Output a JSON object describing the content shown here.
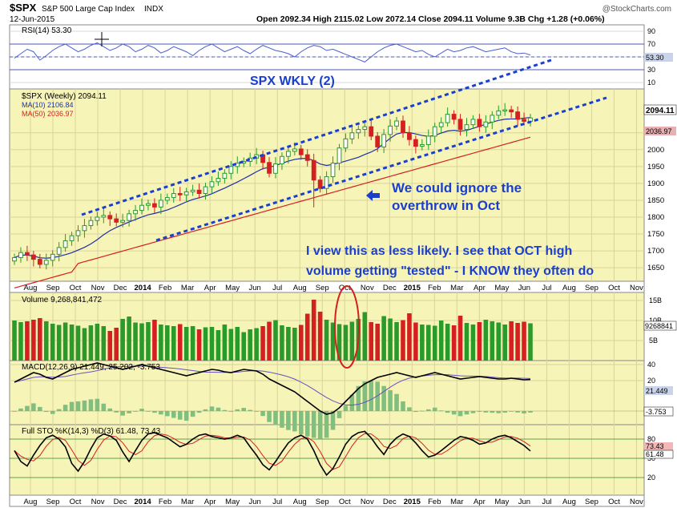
{
  "header": {
    "symbol": "$SPX",
    "name": "S&P 500 Large Cap Index",
    "exchange": "INDX",
    "date": "12-Jun-2015",
    "watermark": "@StockCharts.com",
    "ohlc_line": "Open 2092.34  High 2115.02  Low 2072.14  Close 2094.11  Volume 9.3B  Chg +1.28 (+0.06%)"
  },
  "colors": {
    "panel_bg": "#f7f4b8",
    "rsi_bg": "#ffffff",
    "up": "#2a9a2a",
    "down": "#d42020",
    "ma10": "#1f2fa8",
    "ma50": "#d42020",
    "annotation": "#1a3fd0",
    "channel": "#1a3fd0"
  },
  "chart_data": [
    {
      "type": "line",
      "panel": "rsi",
      "title": "RSI(14) 53.30",
      "ylim": [
        0,
        100
      ],
      "y_ticks": [
        90,
        70,
        50,
        30,
        10
      ],
      "reference_lines": [
        70,
        30
      ],
      "last_value_label": "53.30",
      "values": [
        48,
        55,
        62,
        58,
        45,
        52,
        60,
        66,
        70,
        64,
        58,
        62,
        68,
        72,
        66,
        60,
        64,
        70,
        66,
        58,
        62,
        68,
        64,
        56,
        60,
        66,
        62,
        58,
        52,
        60,
        66,
        70,
        64,
        58,
        62,
        66,
        60,
        55,
        62,
        68,
        64,
        60,
        58,
        55,
        50,
        58,
        64,
        68,
        66,
        60,
        62,
        58,
        54,
        50,
        46,
        42,
        50,
        58,
        64,
        68,
        70,
        66,
        62,
        58,
        60,
        54,
        50,
        56,
        62,
        58,
        60,
        64,
        66,
        62,
        58,
        60,
        62,
        64,
        58,
        55,
        56,
        53
      ]
    },
    {
      "type": "candlestick",
      "panel": "price",
      "title": "SPX WKLY (2)",
      "legend": [
        "$SPX (Weekly) 2094.11",
        "MA(10) 2106.84",
        "MA(50) 2036.97"
      ],
      "ylim": [
        1610,
        2180
      ],
      "y_ticks": [
        2050,
        2000,
        1950,
        1900,
        1850,
        1800,
        1750,
        1700,
        1650
      ],
      "last_value_labels": [
        "2094.11",
        "2036.97"
      ],
      "x_tick_labels": [
        "Aug",
        "Sep",
        "Oct",
        "Nov",
        "Dec",
        "2014",
        "Feb",
        "Mar",
        "Apr",
        "May",
        "Jun",
        "Jul",
        "Aug",
        "Sep",
        "Oct",
        "Nov",
        "Dec",
        "2015",
        "Feb",
        "Mar",
        "Apr",
        "May",
        "Jun",
        "Jul",
        "Aug",
        "Sep",
        "Oct",
        "Nov"
      ],
      "annotations": [
        "We could ignore the",
        "overthrow in Oct",
        "I view this as less likely. I see that OCT high",
        "volume getting \"tested\" -  I KNOW they often do"
      ],
      "close": [
        1680,
        1695,
        1688,
        1675,
        1660,
        1672,
        1690,
        1710,
        1730,
        1745,
        1760,
        1775,
        1790,
        1800,
        1805,
        1795,
        1785,
        1790,
        1810,
        1820,
        1835,
        1840,
        1830,
        1850,
        1858,
        1870,
        1866,
        1875,
        1880,
        1870,
        1890,
        1905,
        1915,
        1930,
        1950,
        1960,
        1965,
        1975,
        1985,
        1962,
        1930,
        1958,
        1980,
        1995,
        2002,
        1985,
        1968,
        1910,
        1885,
        1920,
        1960,
        2005,
        2032,
        2050,
        2060,
        2068,
        2040,
        2008,
        2045,
        2070,
        2085,
        2050,
        2030,
        2010,
        2015,
        2040,
        2068,
        2080,
        2105,
        2090,
        2060,
        2074,
        2090,
        2068,
        2082,
        2102,
        2115,
        2118,
        2112,
        2090,
        2084,
        2094
      ]
    },
    {
      "type": "bar",
      "panel": "volume",
      "title": "Volume 9,268,841,472",
      "unit": "B",
      "y_ticks": [
        "15B",
        "10B",
        "5B"
      ],
      "last_value_label": "9268841",
      "values": [
        10.0,
        9.6,
        9.8,
        10.2,
        10.6,
        9.8,
        9.2,
        8.9,
        9.5,
        9.0,
        8.7,
        8.1,
        8.8,
        9.2,
        8.6,
        7.4,
        8.2,
        10.4,
        11.0,
        9.5,
        9.3,
        9.6,
        10.2,
        9.0,
        8.8,
        8.6,
        9.1,
        8.4,
        8.6,
        7.8,
        8.3,
        8.4,
        7.6,
        9.0,
        7.9,
        8.4,
        7.1,
        7.8,
        8.1,
        8.6,
        9.7,
        10.1,
        8.8,
        8.4,
        8.2,
        8.9,
        11.7,
        15.2,
        12.2,
        10.2,
        9.5,
        9.1,
        8.9,
        9.7,
        10.4,
        12.1,
        9.6,
        9.2,
        11.1,
        10.5,
        9.6,
        10.1,
        11.8,
        9.5,
        9.0,
        8.9,
        8.7,
        10.0,
        9.2,
        8.8,
        11.2,
        9.4,
        9.0,
        9.6,
        10.2,
        9.8,
        9.5,
        9.0,
        9.8,
        9.4,
        9.7,
        9.3
      ]
    },
    {
      "type": "line",
      "panel": "macd",
      "title": "MACD(12,26,9) 21.449, 25.202, -3.753",
      "y_ticks": [
        40,
        20
      ],
      "last_value_labels": [
        "21.449",
        "-3.753"
      ],
      "macd": [
        18,
        22,
        26,
        30,
        28,
        24,
        22,
        26,
        30,
        34,
        36,
        38,
        40,
        42,
        40,
        38,
        36,
        34,
        36,
        38,
        40,
        38,
        36,
        34,
        32,
        30,
        28,
        26,
        28,
        30,
        32,
        34,
        33,
        31,
        30,
        32,
        34,
        33,
        32,
        28,
        22,
        18,
        14,
        10,
        6,
        0,
        -6,
        -12,
        -18,
        -22,
        -20,
        -14,
        -6,
        2,
        10,
        16,
        20,
        24,
        26,
        28,
        30,
        28,
        26,
        24,
        26,
        28,
        30,
        28,
        26,
        24,
        22,
        23,
        24,
        25,
        24,
        23,
        22,
        22,
        23,
        22,
        21,
        21.4
      ]
    },
    {
      "type": "line",
      "panel": "stochastic",
      "title": "Full STO %K(14,3) %D(3) 61.48, 73.43",
      "y_ticks": [
        80,
        50,
        20
      ],
      "last_value_labels": [
        "73.43",
        "61.48"
      ],
      "k": [
        62,
        45,
        38,
        55,
        70,
        82,
        86,
        80,
        68,
        42,
        30,
        45,
        65,
        82,
        88,
        85,
        78,
        60,
        45,
        62,
        78,
        88,
        90,
        86,
        82,
        75,
        68,
        72,
        80,
        86,
        88,
        84,
        82,
        80,
        82,
        86,
        82,
        68,
        55,
        40,
        32,
        45,
        60,
        74,
        82,
        86,
        80,
        62,
        40,
        24,
        34,
        52,
        72,
        84,
        90,
        92,
        82,
        68,
        56,
        72,
        82,
        88,
        84,
        74,
        62,
        52,
        55,
        62,
        70,
        78,
        84,
        82,
        78,
        72,
        74,
        80,
        84,
        86,
        82,
        76,
        70,
        61.5
      ]
    }
  ]
}
